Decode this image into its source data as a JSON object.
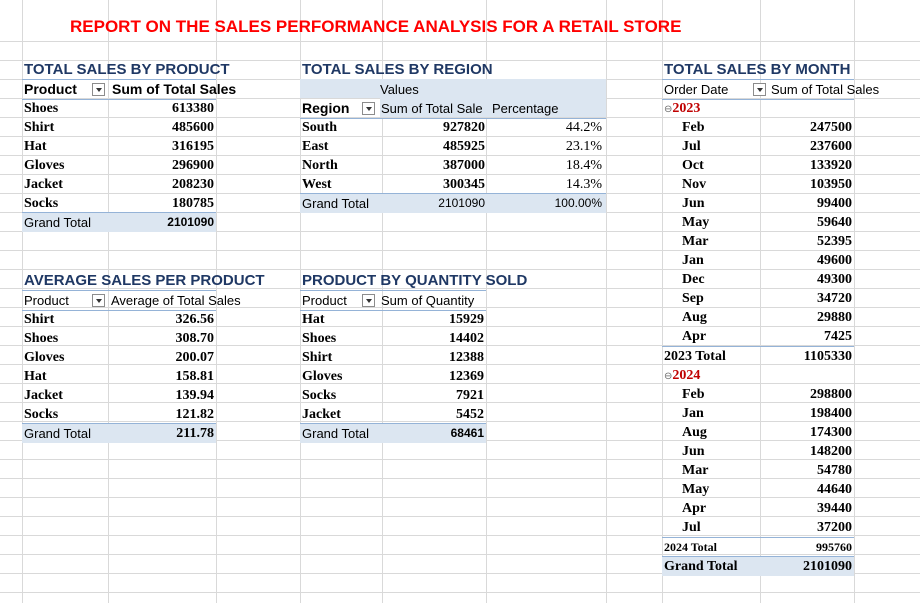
{
  "title": "REPORT ON THE SALES PERFORMANCE ANALYSIS FOR A RETAIL STORE",
  "colors": {
    "title_red": "#ff0000",
    "header_navy": "#1f3864",
    "band_blue": "#dce6f1",
    "year_red": "#c00000",
    "grid": "#d9d9d9"
  },
  "product_sales": {
    "heading": "TOTAL SALES BY PRODUCT",
    "col1": "Product",
    "col2": "Sum of Total Sales",
    "rows": [
      {
        "label": "Shoes",
        "value": "613380"
      },
      {
        "label": "Shirt",
        "value": "485600"
      },
      {
        "label": "Hat",
        "value": "316195"
      },
      {
        "label": "Gloves",
        "value": "296900"
      },
      {
        "label": "Jacket",
        "value": "208230"
      },
      {
        "label": "Socks",
        "value": "180785"
      }
    ],
    "total_label": "Grand Total",
    "total_value": "2101090"
  },
  "region_sales": {
    "heading": "TOTAL SALES BY REGION",
    "values_label": "Values",
    "col1": "Region",
    "col2": "Sum of Total Sale",
    "col3": "Percentage",
    "rows": [
      {
        "label": "South",
        "value": "927820",
        "pct": "44.2%"
      },
      {
        "label": "East",
        "value": "485925",
        "pct": "23.1%"
      },
      {
        "label": "North",
        "value": "387000",
        "pct": "18.4%"
      },
      {
        "label": "West",
        "value": "300345",
        "pct": "14.3%"
      }
    ],
    "total_label": "Grand Total",
    "total_value": "2101090",
    "total_pct": "100.00%"
  },
  "avg_sales": {
    "heading": "AVERAGE SALES PER PRODUCT",
    "col1": "Product",
    "col2": "Average of Total Sales",
    "rows": [
      {
        "label": "Shirt",
        "value": "326.56"
      },
      {
        "label": "Shoes",
        "value": "308.70"
      },
      {
        "label": "Gloves",
        "value": "200.07"
      },
      {
        "label": "Hat",
        "value": "158.81"
      },
      {
        "label": "Jacket",
        "value": "139.94"
      },
      {
        "label": "Socks",
        "value": "121.82"
      }
    ],
    "total_label": "Grand Total",
    "total_value": "211.78"
  },
  "qty_sold": {
    "heading": "PRODUCT  BY QUANTITY SOLD",
    "col1": "Product",
    "col2": "Sum of Quantity",
    "rows": [
      {
        "label": "Hat",
        "value": "15929"
      },
      {
        "label": "Shoes",
        "value": "14402"
      },
      {
        "label": "Shirt",
        "value": "12388"
      },
      {
        "label": "Gloves",
        "value": "12369"
      },
      {
        "label": "Socks",
        "value": "7921"
      },
      {
        "label": "Jacket",
        "value": "5452"
      }
    ],
    "total_label": "Grand Total",
    "total_value": "68461"
  },
  "month_sales": {
    "heading": "TOTAL SALES BY MONTH",
    "col1": "Order Date",
    "col2": "Sum of Total Sales",
    "collapse_glyph": "⊖",
    "year1": "2023",
    "rows1": [
      {
        "label": "Feb",
        "value": "247500"
      },
      {
        "label": "Jul",
        "value": "237600"
      },
      {
        "label": "Oct",
        "value": "133920"
      },
      {
        "label": "Nov",
        "value": "103950"
      },
      {
        "label": "Jun",
        "value": "99400"
      },
      {
        "label": "May",
        "value": "59640"
      },
      {
        "label": "Mar",
        "value": "52395"
      },
      {
        "label": "Jan",
        "value": "49600"
      },
      {
        "label": "Dec",
        "value": "49300"
      },
      {
        "label": "Sep",
        "value": "34720"
      },
      {
        "label": "Aug",
        "value": "29880"
      },
      {
        "label": "Apr",
        "value": "7425"
      }
    ],
    "subtotal1_label": "2023 Total",
    "subtotal1_value": "1105330",
    "year2": "2024",
    "rows2": [
      {
        "label": "Feb",
        "value": "298800"
      },
      {
        "label": "Jan",
        "value": "198400"
      },
      {
        "label": "Aug",
        "value": "174300"
      },
      {
        "label": "Jun",
        "value": "148200"
      },
      {
        "label": "Mar",
        "value": "54780"
      },
      {
        "label": "May",
        "value": "44640"
      },
      {
        "label": "Apr",
        "value": "39440"
      },
      {
        "label": "Jul",
        "value": "37200"
      }
    ],
    "subtotal2_label": "2024 Total",
    "subtotal2_value": "995760",
    "total_label": "Grand Total",
    "total_value": "2101090"
  }
}
